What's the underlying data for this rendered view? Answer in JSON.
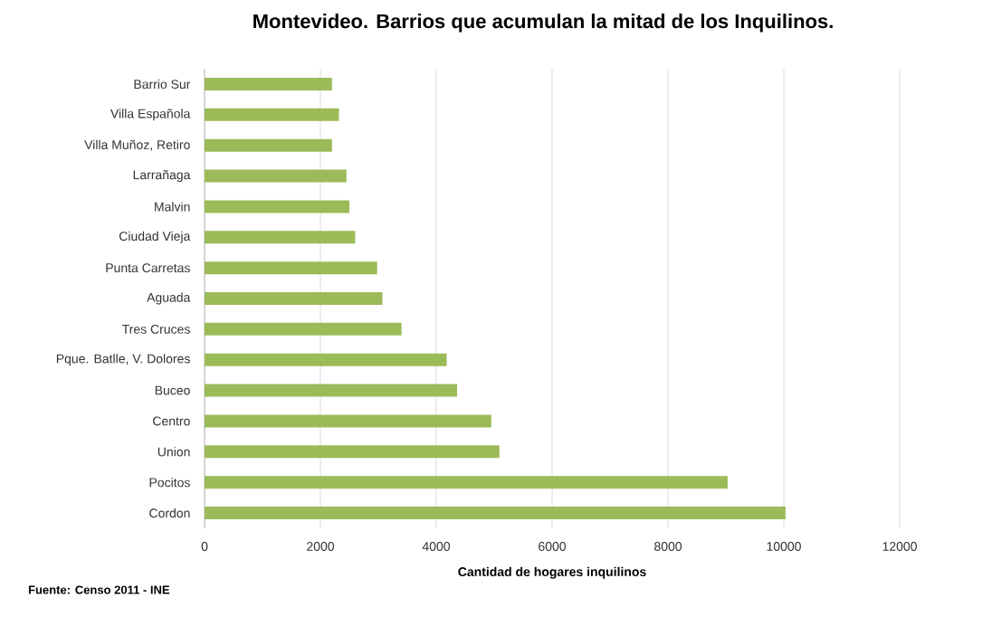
{
  "chart_data": {
    "type": "bar",
    "orientation": "horizontal",
    "title": "Montevideo.  Barrios que acumulan la mitad de los Inquilinos.",
    "xlabel": "Cantidad de hogares inquilinos",
    "categories": [
      "Barrio Sur",
      "Villa Española",
      "Villa Muñoz, Retiro",
      "Larrañaga",
      "Malvin",
      "Ciudad Vieja",
      "Punta Carretas",
      "Aguada",
      "Tres Cruces",
      "Pque. Batlle, V. Dolores",
      "Buceo",
      "Centro",
      "Union",
      "Pocitos",
      "Cordon"
    ],
    "values": [
      2200,
      2320,
      2200,
      2450,
      2500,
      2600,
      2980,
      3070,
      3400,
      4180,
      4360,
      4950,
      5090,
      9030,
      10030
    ],
    "color": "#9bbb59",
    "xlim": [
      0,
      12000
    ],
    "xticks": [
      0,
      2000,
      4000,
      6000,
      8000,
      10000,
      12000
    ],
    "grid": "x",
    "annotations": [
      "Fuente:  Censo 2011 - INE"
    ]
  }
}
